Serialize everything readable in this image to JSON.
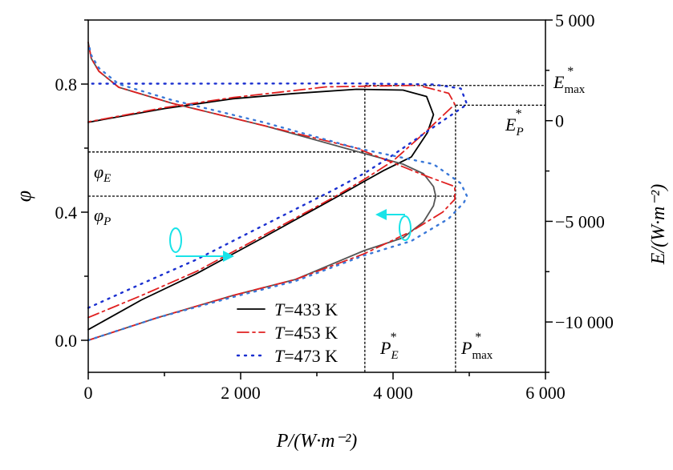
{
  "chart_data": {
    "type": "line",
    "xlabel": "P/(W·m⁻²)",
    "ylabel_left": "φ",
    "ylabel_right": "E/(W·m⁻²)",
    "xlim": [
      0,
      6000
    ],
    "ylim_left": [
      -0.1,
      1.0
    ],
    "ylim_right": [
      -12500,
      5000
    ],
    "x_ticks": [
      {
        "v": 0,
        "label": "0"
      },
      {
        "v": 2000,
        "label": "2 000"
      },
      {
        "v": 4000,
        "label": "4 000"
      },
      {
        "v": 6000,
        "label": "6 000"
      }
    ],
    "left_ticks": [
      {
        "v": 0,
        "label": "0.0"
      },
      {
        "v": 0.4,
        "label": "0.4"
      },
      {
        "v": 0.8,
        "label": "0.8"
      }
    ],
    "right_ticks": [
      {
        "v": 5000,
        "label": "5 000"
      },
      {
        "v": 0,
        "label": "0"
      },
      {
        "v": -5000,
        "label": "−5 000"
      },
      {
        "v": -10000,
        "label": "−10 000"
      }
    ],
    "legend": {
      "placement": "bottom-center",
      "entries": [
        {
          "prefix": "T",
          "text": "=433 K",
          "color": "#000000",
          "style": "solid"
        },
        {
          "prefix": "T",
          "text": "=453 K",
          "color": "#e02020",
          "style": "dashdot"
        },
        {
          "prefix": "T",
          "text": "=473 K",
          "color": "#1a2fd0",
          "style": "dotted"
        }
      ]
    },
    "series": [
      {
        "name": "E, T=433 K",
        "axis": "right",
        "color": "#000000",
        "style": "solid",
        "points": [
          [
            0,
            -10380
          ],
          [
            700,
            -8900
          ],
          [
            1420,
            -7600
          ],
          [
            2300,
            -5800
          ],
          [
            3270,
            -3770
          ],
          [
            3630,
            -3000
          ],
          [
            3880,
            -2470
          ],
          [
            4240,
            -1800
          ],
          [
            4450,
            -600
          ],
          [
            4530,
            300
          ],
          [
            4440,
            1200
          ],
          [
            4130,
            1520
          ],
          [
            3520,
            1560
          ],
          [
            2700,
            1350
          ],
          [
            1900,
            1090
          ],
          [
            1000,
            600
          ],
          [
            0,
            -80
          ]
        ]
      },
      {
        "name": "φ, T=433 K",
        "axis": "left",
        "color": "#555555",
        "style": "solid",
        "points": [
          [
            0,
            0
          ],
          [
            900,
            0.07
          ],
          [
            1900,
            0.14
          ],
          [
            2720,
            0.19
          ],
          [
            3620,
            0.28
          ],
          [
            4130,
            0.32
          ],
          [
            4400,
            0.37
          ],
          [
            4530,
            0.42
          ],
          [
            4560,
            0.45
          ],
          [
            4530,
            0.48
          ],
          [
            4400,
            0.52
          ],
          [
            4130,
            0.55
          ],
          [
            3520,
            0.59
          ],
          [
            2310,
            0.67
          ],
          [
            1100,
            0.74
          ],
          [
            400,
            0.79
          ],
          [
            140,
            0.84
          ],
          [
            40,
            0.88
          ],
          [
            0,
            0.93
          ]
        ]
      },
      {
        "name": "E, T=453 K",
        "axis": "right",
        "color": "#e02020",
        "style": "dashdot",
        "points": [
          [
            0,
            -9780
          ],
          [
            700,
            -8680
          ],
          [
            1420,
            -7490
          ],
          [
            2300,
            -5700
          ],
          [
            3240,
            -3770
          ],
          [
            3630,
            -2900
          ],
          [
            4000,
            -2000
          ],
          [
            4410,
            -610
          ],
          [
            4810,
            810
          ],
          [
            4730,
            1360
          ],
          [
            4330,
            1760
          ],
          [
            3120,
            1680
          ],
          [
            1900,
            1150
          ],
          [
            1000,
            650
          ],
          [
            0,
            -60
          ]
        ]
      },
      {
        "name": "φ, T=453 K",
        "axis": "left",
        "color": "#e02020",
        "style": "dashdot",
        "points": [
          [
            0,
            0
          ],
          [
            900,
            0.07
          ],
          [
            1900,
            0.14
          ],
          [
            2720,
            0.19
          ],
          [
            3620,
            0.27
          ],
          [
            4240,
            0.34
          ],
          [
            4650,
            0.4
          ],
          [
            4810,
            0.44
          ],
          [
            4810,
            0.48
          ],
          [
            4410,
            0.515
          ],
          [
            3520,
            0.6
          ],
          [
            2310,
            0.67
          ],
          [
            1100,
            0.74
          ],
          [
            400,
            0.79
          ],
          [
            140,
            0.84
          ],
          [
            40,
            0.88
          ],
          [
            0,
            0.93
          ]
        ]
      },
      {
        "name": "E, T=473 K",
        "axis": "right",
        "color": "#1a2fd0",
        "style": "dotted",
        "points": [
          [
            0,
            -9300
          ],
          [
            700,
            -8100
          ],
          [
            1420,
            -6900
          ],
          [
            2300,
            -5200
          ],
          [
            3240,
            -3400
          ],
          [
            3630,
            -2600
          ],
          [
            4000,
            -1700
          ],
          [
            4500,
            -400
          ],
          [
            4970,
            810
          ],
          [
            4890,
            1600
          ],
          [
            4530,
            1800
          ],
          [
            3500,
            1850
          ],
          [
            1000,
            1840
          ],
          [
            50,
            1840
          ]
        ]
      },
      {
        "name": "φ, T=473 K",
        "axis": "left",
        "color": "#3a78d8",
        "style": "dotted",
        "points": [
          [
            0,
            0
          ],
          [
            900,
            0.07
          ],
          [
            1900,
            0.135
          ],
          [
            2720,
            0.185
          ],
          [
            3620,
            0.265
          ],
          [
            4240,
            0.31
          ],
          [
            4730,
            0.38
          ],
          [
            4930,
            0.43
          ],
          [
            4970,
            0.45
          ],
          [
            4890,
            0.49
          ],
          [
            4530,
            0.55
          ],
          [
            3520,
            0.6
          ],
          [
            2310,
            0.68
          ],
          [
            1100,
            0.75
          ],
          [
            400,
            0.8
          ],
          [
            140,
            0.85
          ],
          [
            40,
            0.89
          ],
          [
            0,
            0.93
          ]
        ]
      }
    ],
    "reference_lines": {
      "P_E_star": 3630,
      "P_max_star": 4820,
      "E_max_star": 1750,
      "E_P_star": 770,
      "phi_E": 0.588,
      "phi_P": 0.45
    },
    "annotations": {
      "phi_E": {
        "base": "φ",
        "sub": "E"
      },
      "phi_P": {
        "base": "φ",
        "sub": "P"
      },
      "E_max": {
        "base": "E",
        "sub": "max",
        "sup": "*"
      },
      "E_P": {
        "base": "E",
        "sub": "P",
        "sup": "*"
      },
      "P_E": {
        "base": "P",
        "sub": "E",
        "sup": "*"
      },
      "P_max": {
        "base": "P",
        "sub": "max",
        "sup": "*"
      }
    },
    "arrow_color": "#19e3e8"
  }
}
